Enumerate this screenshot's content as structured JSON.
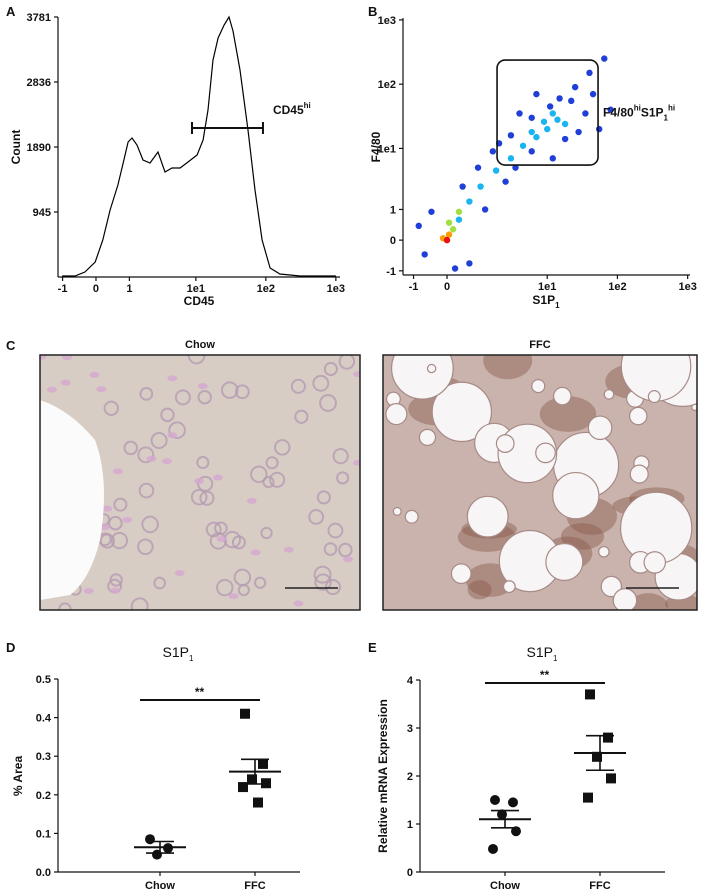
{
  "chart_data": [
    {
      "type": "line",
      "panel": "A",
      "xlabel": "CD45",
      "ylabel": "Count",
      "color": "#000000",
      "xscale": "asinh",
      "x": [
        -1.02,
        -0.56,
        -0.28,
        -0.02,
        0.17,
        0.36,
        0.59,
        0.79,
        0.95,
        1.11,
        1.35,
        1.68,
        2.15,
        2.83,
        3.59,
        4.54,
        5.93,
        7.72,
        10.4,
        12.7,
        14.9,
        17.6,
        20.8,
        25.3,
        29.8,
        34.0,
        42.8,
        55.7,
        70.0,
        88.3,
        115,
        159,
        308,
        1000
      ],
      "values": [
        15,
        15,
        73,
        218,
        538,
        974,
        1338,
        1701,
        1963,
        2021,
        1919,
        1701,
        1658,
        1818,
        1527,
        1585,
        1585,
        1672,
        1774,
        1992,
        2428,
        3155,
        3475,
        3664,
        3781,
        3577,
        3010,
        2137,
        1265,
        538,
        131,
        44,
        15,
        15
      ],
      "xlim": [
        -1.2,
        1146
      ],
      "ylim": [
        0,
        3781
      ],
      "xticks": [
        -1,
        0,
        1,
        {
          "value": 10,
          "label": "1e1"
        },
        {
          "value": 100,
          "label": "1e2"
        },
        {
          "value": 1000,
          "label": "1e3"
        }
      ],
      "yticks": [
        945,
        1890,
        2836,
        3781
      ],
      "gate": [
        8.8,
        91
      ],
      "gate_y": 2166,
      "gate_label": [
        {
          "text": "CD45"
        },
        {
          "text": "hi",
          "style": "sup"
        }
      ]
    },
    {
      "type": "scatter",
      "panel": "B",
      "xscale": "asinh",
      "yscale": "asinh",
      "xlabel": [
        {
          "text": "S1P"
        },
        {
          "text": "1",
          "style": "sub"
        }
      ],
      "ylabel": "F4/80",
      "x": [
        -0.6,
        0.6,
        -0.4,
        0.4,
        1.2,
        0.9,
        2.5,
        1.6,
        3.5,
        3,
        6,
        6,
        12,
        11,
        18,
        22,
        28,
        35,
        45,
        55,
        7,
        4,
        65,
        40,
        25,
        15,
        2,
        0.2,
        -0.8,
        80,
        0.3,
        0.6,
        1,
        1.8,
        3,
        4.5,
        7,
        10,
        14,
        9,
        18,
        6,
        12,
        0.15,
        0.3,
        0.05,
        0.05,
        -0.1,
        0
      ],
      "y": [
        -0.4,
        -0.7,
        0.9,
        2.5,
        1,
        5,
        3,
        9,
        5,
        16,
        9,
        30,
        7,
        45,
        14,
        55,
        18,
        35,
        70,
        20,
        70,
        35,
        250,
        150,
        90,
        60,
        12,
        -0.9,
        0.4,
        40,
        0.6,
        1.4,
        2.5,
        4.5,
        7,
        11,
        15,
        20,
        28,
        26,
        24,
        18,
        35,
        0.3,
        0.9,
        0.5,
        0.15,
        0.05,
        0
      ],
      "colors": [
        "#1f3fd6",
        "#1f3fd6",
        "#1f3fd6",
        "#1f3fd6",
        "#1f3fd6",
        "#1f3fd6",
        "#1f3fd6",
        "#1f3fd6",
        "#1f3fd6",
        "#1f3fd6",
        "#1f3fd6",
        "#1f3fd6",
        "#1f3fd6",
        "#1f3fd6",
        "#1f3fd6",
        "#1f3fd6",
        "#1f3fd6",
        "#1f3fd6",
        "#1f3fd6",
        "#1f3fd6",
        "#1f3fd6",
        "#1f3fd6",
        "#1f3fd6",
        "#1f3fd6",
        "#1f3fd6",
        "#1f3fd6",
        "#1f3fd6",
        "#1f3fd6",
        "#1f3fd6",
        "#1f3fd6",
        "#19b5f0",
        "#19b5f0",
        "#19b5f0",
        "#19b5f0",
        "#19b5f0",
        "#19b5f0",
        "#19b5f0",
        "#19b5f0",
        "#19b5f0",
        "#19b5f0",
        "#19b5f0",
        "#19b5f0",
        "#19b5f0",
        "#a0e040",
        "#a0e040",
        "#a0e040",
        "#ff9a00",
        "#ff9a00",
        "#e81010"
      ],
      "xlim": [
        -1.5,
        1080
      ],
      "ylim": [
        -1.2,
        1070
      ],
      "xticks": [
        -1,
        0,
        {
          "value": 10,
          "label": "1e1"
        },
        {
          "value": 100,
          "label": "1e2"
        },
        {
          "value": 1000,
          "label": "1e3"
        }
      ],
      "yticks": [
        -1,
        0,
        1,
        {
          "value": 10,
          "label": "1e1"
        },
        {
          "value": 100,
          "label": "1e2"
        },
        {
          "value": 1000,
          "label": "1e3"
        }
      ],
      "gate_x": [
        1.86,
        53
      ],
      "gate_y": [
        5.5,
        237
      ],
      "gate_label": [
        {
          "text": "F4/80"
        },
        {
          "text": "hi",
          "style": "sup"
        },
        {
          "text": "S1P"
        },
        {
          "text": "1",
          "style": "sub"
        },
        {
          "text": "hi",
          "style": "sup"
        }
      ]
    },
    {
      "type": "dot",
      "panel": "D",
      "title": [
        {
          "text": "S1P"
        },
        {
          "text": "1",
          "style": "sub"
        }
      ],
      "ylabel": "% Area",
      "categories": [
        "Chow",
        "FFC"
      ],
      "markers": [
        "circle",
        "square"
      ],
      "values": [
        [
          0.085,
          0.062,
          0.045
        ],
        [
          0.41,
          0.28,
          0.24,
          0.23,
          0.22,
          0.18
        ]
      ],
      "means": [
        0.064,
        0.26
      ],
      "sems": [
        0.015,
        0.032
      ],
      "significance": "**",
      "ylim": [
        0,
        0.5
      ],
      "yticks": [
        {
          "value": 0,
          "label": "0.0"
        },
        0.1,
        0.2,
        0.3,
        0.4,
        0.5
      ]
    },
    {
      "type": "dot",
      "panel": "E",
      "title": [
        {
          "text": "S1P"
        },
        {
          "text": "1",
          "style": "sub"
        }
      ],
      "ylabel": "Relative mRNA Expression",
      "categories": [
        "Chow",
        "FFC"
      ],
      "markers": [
        "circle",
        "square"
      ],
      "values": [
        [
          1.5,
          1.45,
          1.2,
          0.85,
          0.48
        ],
        [
          3.7,
          2.8,
          2.4,
          1.95,
          1.55
        ]
      ],
      "means": [
        1.1,
        2.48
      ],
      "sems": [
        0.18,
        0.36
      ],
      "significance": "**",
      "ylim": [
        0,
        4
      ],
      "yticks": [
        0,
        1,
        2,
        3,
        4
      ]
    }
  ],
  "images": {
    "panel": "C",
    "titles": [
      "Chow",
      "FFC"
    ]
  }
}
